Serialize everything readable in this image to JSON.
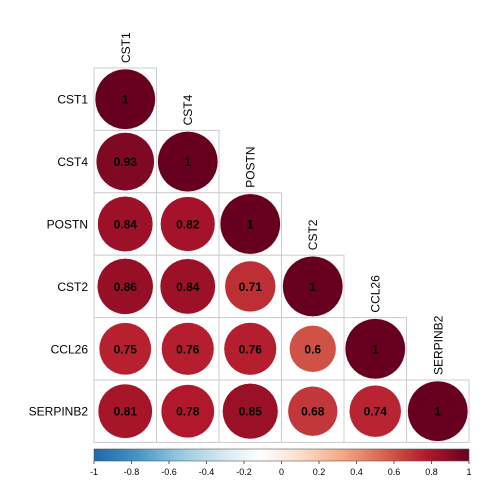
{
  "chart_data": {
    "type": "heatmap",
    "layout": "lower-triangle correlation matrix, circle glyphs",
    "labels": [
      "CST1",
      "CST4",
      "POSTN",
      "CST2",
      "CCL26",
      "SERPINB2"
    ],
    "matrix": [
      [
        1
      ],
      [
        0.93,
        1
      ],
      [
        0.84,
        0.82,
        1
      ],
      [
        0.86,
        0.84,
        0.71,
        1
      ],
      [
        0.75,
        0.76,
        0.76,
        0.6,
        1
      ],
      [
        0.81,
        0.78,
        0.85,
        0.68,
        0.74,
        1
      ]
    ],
    "value_labels": [
      [
        "1"
      ],
      [
        "0.93",
        "1"
      ],
      [
        "0.84",
        "0.82",
        "1"
      ],
      [
        "0.86",
        "0.84",
        "0.71",
        "1"
      ],
      [
        "0.75",
        "0.76",
        "0.76",
        "0.6",
        "1"
      ],
      [
        "0.81",
        "0.78",
        "0.85",
        "0.68",
        "0.74",
        "1"
      ]
    ],
    "colorbar": {
      "range": [
        -1,
        1
      ],
      "ticks": [
        -1,
        -0.8,
        -0.6,
        -0.4,
        -0.2,
        0,
        0.2,
        0.4,
        0.6,
        0.8,
        1
      ],
      "tick_labels": [
        "-1",
        "-0.8",
        "-0.6",
        "-0.4",
        "-0.2",
        "0",
        "0.2",
        "0.4",
        "0.6",
        "0.8",
        "1"
      ],
      "position": "bottom",
      "colors": [
        "#2166AC",
        "#4393C3",
        "#92C5DE",
        "#D1E5F0",
        "#FFFFFF",
        "#FDDBC7",
        "#F4A582",
        "#D6604D",
        "#B2182B",
        "#67001F"
      ]
    },
    "grid": true
  }
}
